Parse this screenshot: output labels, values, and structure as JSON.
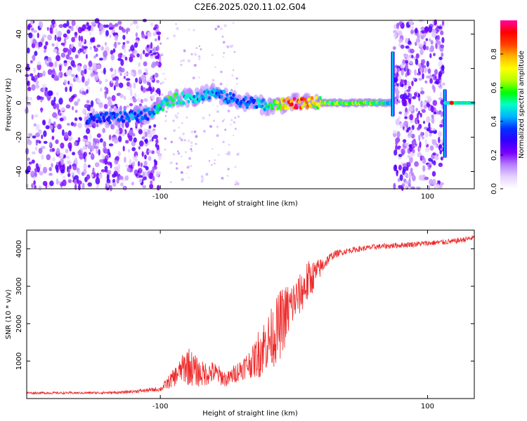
{
  "title": "C2E6.2025.020.11.02.G04",
  "chart_data": [
    {
      "type": "heatmap",
      "xlabel": "Height of straight line (km)",
      "ylabel": "Frequency (Hz)",
      "xlim": [
        -200,
        135
      ],
      "ylim": [
        -50,
        48
      ],
      "xticks": [
        -100,
        100
      ],
      "xtick_labels": [
        "-100",
        "100"
      ],
      "yticks": [
        40,
        20,
        0,
        -20,
        -40
      ],
      "ytick_labels": [
        "40",
        "20",
        "0",
        "-20",
        "-40"
      ],
      "colorbar": {
        "label": "Normalized spectral amplitude",
        "range": [
          0,
          1
        ],
        "ticks": [
          0.0,
          0.2,
          0.4,
          0.6,
          0.8
        ],
        "tick_labels": [
          "0.0",
          "0.2",
          "0.4",
          "0.6",
          "0.8"
        ],
        "colormap": [
          "#ffffff",
          "#e6d2ff",
          "#b680ff",
          "#7a00ff",
          "#3000ff",
          "#0030ff",
          "#00b4ff",
          "#00ffc8",
          "#00ff00",
          "#b4ff00",
          "#ffff00",
          "#ffb400",
          "#ff4000",
          "#ff0000",
          "#ff00a0"
        ]
      },
      "ridge": {
        "x": [
          -155,
          -140,
          -125,
          -110,
          -100,
          -90,
          -80,
          -70,
          -60,
          -50,
          -40,
          -30,
          -20,
          -10,
          0,
          10,
          20,
          40,
          60,
          70,
          73
        ],
        "frequency": [
          -10,
          -9,
          -8,
          -7,
          -2,
          2,
          3,
          4,
          6,
          3,
          1,
          0,
          -2,
          -1,
          0,
          0,
          0,
          0,
          0,
          0,
          0
        ],
        "amplitude": [
          0.35,
          0.35,
          0.4,
          0.4,
          0.5,
          0.55,
          0.45,
          0.45,
          0.4,
          0.4,
          0.35,
          0.4,
          0.5,
          0.65,
          0.95,
          0.75,
          0.65,
          0.6,
          0.6,
          0.5,
          0.4
        ]
      },
      "noise_regions": [
        [
          -200,
          -100
        ],
        [
          75,
          112
        ]
      ],
      "vertical_artifacts": [
        {
          "x": 74,
          "f_range": [
            -8,
            30
          ]
        },
        {
          "x": 113,
          "f_range": [
            -32,
            8
          ]
        }
      ]
    },
    {
      "type": "line",
      "xlabel": "Height of straight line (km)",
      "ylabel": "SNR (10 * v/v)",
      "xlim": [
        -200,
        135
      ],
      "ylim": [
        0,
        4500
      ],
      "xticks": [
        -100,
        100
      ],
      "xtick_labels": [
        "-100",
        "100"
      ],
      "yticks": [
        1000,
        2000,
        3000,
        4000
      ],
      "ytick_labels": [
        "1000",
        "2000",
        "3000",
        "4000"
      ],
      "line_color": "#ee2a2a",
      "envelope": {
        "x": [
          -200,
          -160,
          -130,
          -100,
          -90,
          -85,
          -80,
          -70,
          -60,
          -50,
          -45,
          -35,
          -30,
          -25,
          -20,
          -15,
          -10,
          -5,
          0,
          5,
          10,
          15,
          20,
          25,
          30,
          40,
          60,
          80,
          100,
          120,
          135
        ],
        "mean": [
          150,
          150,
          160,
          250,
          550,
          750,
          900,
          650,
          700,
          500,
          650,
          900,
          1000,
          1300,
          1500,
          1700,
          2000,
          2300,
          2600,
          2800,
          3100,
          3300,
          3500,
          3700,
          3850,
          3950,
          4050,
          4100,
          4150,
          4200,
          4300
        ],
        "spread": [
          60,
          60,
          70,
          120,
          500,
          600,
          1100,
          700,
          600,
          400,
          500,
          700,
          900,
          1500,
          1500,
          1700,
          1900,
          1600,
          1200,
          1100,
          1200,
          800,
          500,
          300,
          200,
          150,
          150,
          150,
          150,
          150,
          150
        ]
      }
    }
  ]
}
